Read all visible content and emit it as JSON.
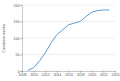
{
  "chart_data": {
    "type": "line",
    "y_label": "Cumulative number",
    "x": [
      2009,
      2010,
      2011,
      2012,
      2013,
      2014,
      2015,
      2016,
      2017,
      2018,
      2019,
      2020,
      2021,
      2022,
      2023
    ],
    "values": [
      2,
      10,
      30,
      55,
      85,
      110,
      125,
      140,
      145,
      150,
      165,
      178,
      183,
      185,
      185
    ],
    "color": "#5b9bd5",
    "xlim": [
      2008,
      2024
    ],
    "xticks": [
      2008,
      2010,
      2012,
      2014,
      2016,
      2018,
      2020,
      2022,
      2024
    ],
    "ylim": [
      0,
      200
    ],
    "yticks": [
      0,
      50,
      100,
      150,
      200
    ],
    "grid": true
  }
}
